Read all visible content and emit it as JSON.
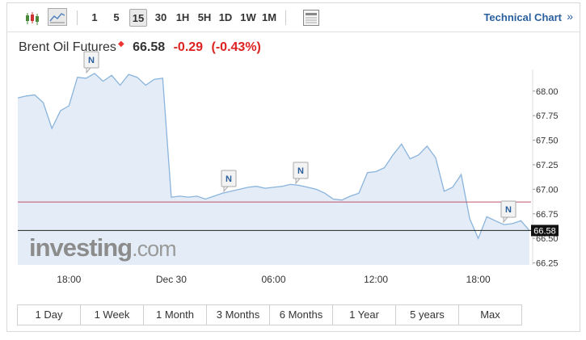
{
  "toolbar": {
    "intervals": [
      "1",
      "5",
      "15",
      "30",
      "1H",
      "5H",
      "1D",
      "1W",
      "1M"
    ],
    "active_interval": 2,
    "technical_chart": "Technical Chart",
    "arrow": "»"
  },
  "chart_data": {
    "type": "line",
    "title": "Brent Oil Futures",
    "last": 66.58,
    "change": -0.29,
    "change_pct": "(-0.43%)",
    "categories": [
      null,
      null,
      null,
      null,
      null,
      null,
      "18:00",
      null,
      null,
      null,
      null,
      null,
      null,
      null,
      null,
      null,
      null,
      null,
      "Dec 30",
      null,
      null,
      null,
      null,
      null,
      null,
      null,
      null,
      null,
      null,
      null,
      "06:00",
      null,
      null,
      null,
      null,
      null,
      null,
      null,
      null,
      null,
      null,
      null,
      "12:00",
      null,
      null,
      null,
      null,
      null,
      null,
      null,
      null,
      null,
      null,
      null,
      "18:00",
      null,
      null,
      null,
      null,
      null,
      null
    ],
    "values": [
      67.93,
      67.95,
      67.96,
      67.88,
      67.62,
      67.8,
      67.85,
      68.14,
      68.13,
      68.18,
      68.1,
      68.16,
      68.06,
      68.17,
      68.14,
      68.06,
      68.12,
      68.13,
      66.92,
      66.93,
      66.92,
      66.93,
      66.9,
      66.93,
      66.96,
      66.98,
      67.0,
      67.02,
      67.03,
      67.01,
      67.02,
      67.03,
      67.05,
      67.04,
      67.02,
      67.0,
      66.96,
      66.9,
      66.89,
      66.93,
      66.96,
      67.17,
      67.18,
      67.22,
      67.35,
      67.46,
      67.31,
      67.35,
      67.44,
      67.32,
      66.98,
      67.02,
      67.15,
      66.7,
      66.5,
      66.72,
      66.68,
      66.64,
      66.65,
      66.68,
      66.58
    ],
    "color": "#8ab4dc",
    "fill": "#e4edf7",
    "prev_close": 66.87,
    "ylim": [
      66.23,
      68.22
    ],
    "yticks": [
      {
        "value": 66.25,
        "label": "66.25"
      },
      {
        "value": 66.5,
        "label": "66.50"
      },
      {
        "value": 66.75,
        "label": "66.75"
      },
      {
        "value": 67,
        "label": "67.00"
      },
      {
        "value": 67.25,
        "label": "67.25"
      },
      {
        "value": 67.5,
        "label": "67.50"
      },
      {
        "value": 67.75,
        "label": "67.75"
      },
      {
        "value": 68,
        "label": "68.00"
      }
    ],
    "news_label": "N",
    "watermark": {
      "brand": "investing",
      "suffix": ".com"
    }
  },
  "ranges": [
    "1 Day",
    "1 Week",
    "1 Month",
    "3 Months",
    "6 Months",
    "1 Year",
    "5 years",
    "Max"
  ]
}
